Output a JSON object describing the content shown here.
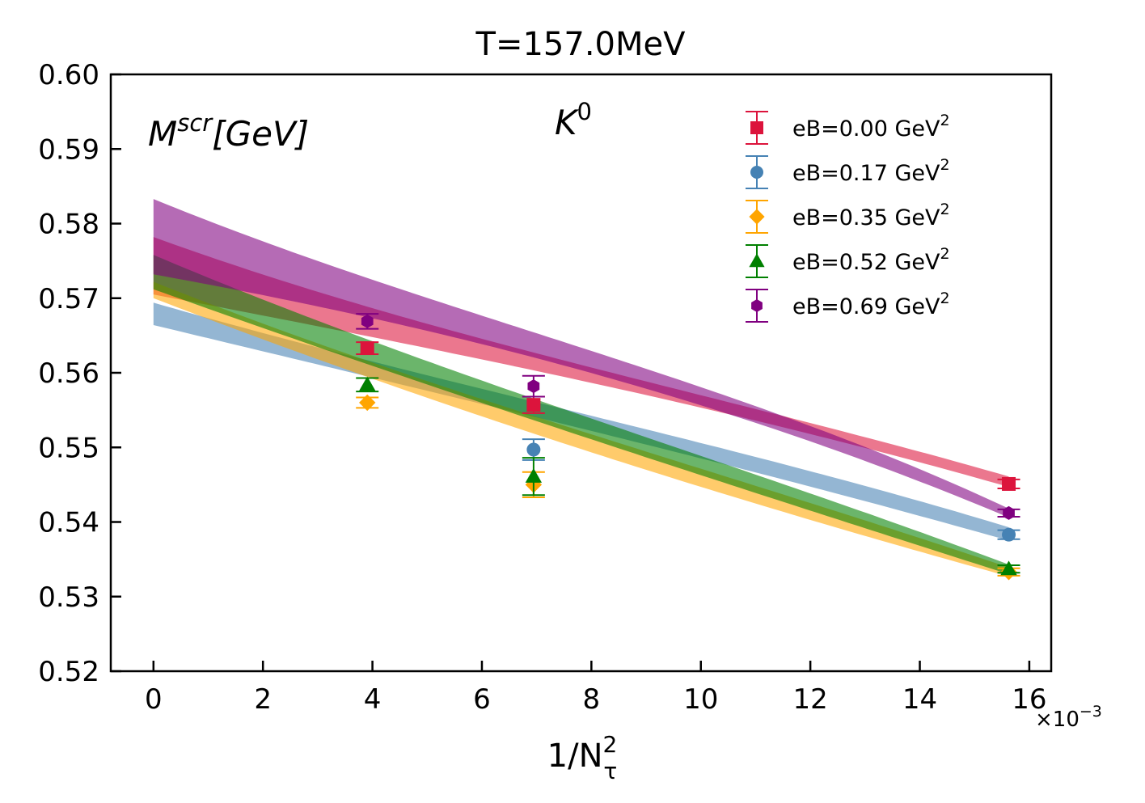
{
  "chart_data": {
    "type": "scatter",
    "title": "T=157.0MeV",
    "xlabel": "1/N",
    "xlabel_sup": "2",
    "xlabel_sub": "τ",
    "x_multiplier_label": "×10",
    "x_multiplier_exp": "−3",
    "quantity_label": "M",
    "quantity_sup": "scr",
    "quantity_unit": "[GeV]",
    "particle_label": "K",
    "particle_sup": "0",
    "xlim": [
      -0.78,
      16.4
    ],
    "ylim": [
      0.52,
      0.6
    ],
    "xticks": [
      0,
      2,
      4,
      6,
      8,
      10,
      12,
      14,
      16
    ],
    "xtick_labels": [
      "0",
      "2",
      "4",
      "6",
      "8",
      "10",
      "12",
      "14",
      "16"
    ],
    "yticks": [
      0.52,
      0.53,
      0.54,
      0.55,
      0.56,
      0.57,
      0.58,
      0.59,
      0.6
    ],
    "ytick_labels": [
      "0.52",
      "0.53",
      "0.54",
      "0.55",
      "0.56",
      "0.57",
      "0.58",
      "0.59",
      "0.60"
    ],
    "legend_position": "top-right",
    "series": [
      {
        "name": "eB=0.00 GeV",
        "name_sup": "2",
        "color": "#dc143c",
        "marker": "square",
        "x": [
          3.906,
          6.944,
          15.625
        ],
        "y": [
          0.5633,
          0.5557,
          0.5451
        ],
        "yerr": [
          0.0008,
          0.0011,
          0.0006
        ],
        "band": {
          "x0": 0,
          "x1": 15.625,
          "lower": [
            0.5705,
            0.5632,
            0.5556,
            0.5447
          ],
          "upper": [
            0.5782,
            0.5643,
            0.5571,
            0.5461
          ]
        }
      },
      {
        "name": "eB=0.17 GeV",
        "name_sup": "2",
        "color": "#4682b4",
        "marker": "circle",
        "x": [
          3.906,
          6.944,
          15.625
        ],
        "y": [
          null,
          0.5497,
          0.5383
        ],
        "yerr": [
          null,
          0.0014,
          0.0006
        ],
        "band": {
          "x0": 0,
          "x1": 15.625,
          "lower": [
            0.5664,
            0.5572,
            0.5483,
            0.5375
          ],
          "upper": [
            0.5694,
            0.5584,
            0.5509,
            0.5393
          ]
        }
      },
      {
        "name": "eB=0.35 GeV",
        "name_sup": "2",
        "color": "#ffa500",
        "marker": "diamond",
        "x": [
          3.906,
          6.944,
          15.625
        ],
        "y": [
          0.556,
          0.545,
          0.5333
        ],
        "yerr": [
          0.0007,
          0.0017,
          0.0005
        ],
        "band": {
          "x0": 0,
          "x1": 15.625,
          "lower": [
            0.57,
            0.5553,
            0.5432,
            0.5327
          ],
          "upper": [
            0.5722,
            0.557,
            0.5468,
            0.5339
          ]
        }
      },
      {
        "name": "eB=0.52 GeV",
        "name_sup": "2",
        "color": "#008000",
        "marker": "triangle",
        "x": [
          3.906,
          6.944,
          15.625
        ],
        "y": [
          0.5584,
          0.5461,
          0.5337
        ],
        "yerr": [
          0.0009,
          0.0025,
          0.0005
        ],
        "band": {
          "x0": 0,
          "x1": 15.625,
          "lower": [
            0.5712,
            0.5575,
            0.5452,
            0.533
          ],
          "upper": [
            0.5758,
            0.5596,
            0.5486,
            0.5343
          ]
        }
      },
      {
        "name": "eB=0.69 GeV",
        "name_sup": "2",
        "color": "#800080",
        "marker": "hexagon",
        "x": [
          3.906,
          6.944,
          15.625
        ],
        "y": [
          0.5669,
          0.5582,
          0.5412
        ],
        "yerr": [
          0.001,
          0.0014,
          0.0005
        ],
        "band": {
          "x0": 0,
          "x1": 15.625,
          "lower": [
            0.5732,
            0.5663,
            0.5567,
            0.5406
          ],
          "upper": [
            0.5833,
            0.5676,
            0.5597,
            0.5418
          ]
        }
      }
    ]
  }
}
